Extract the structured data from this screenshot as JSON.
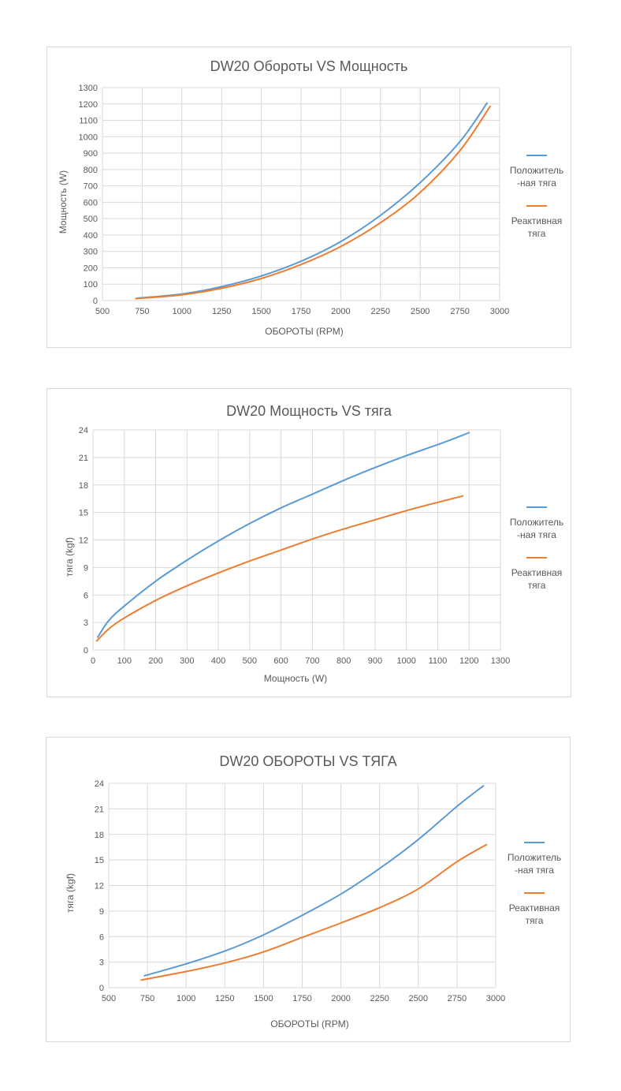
{
  "colors": {
    "series_positive": "#5b9bd5",
    "series_reactive": "#ed7d31",
    "grid": "#d9d9d9",
    "text": "#595959"
  },
  "legend": {
    "positive": "Положитель\n-ная тяга",
    "reactive": "Реактивная\nтяга"
  },
  "chart_data": [
    {
      "type": "line",
      "title": "DW20 Обороты VS Мощность",
      "xlabel": "ОБОРОТЫ (RPM)",
      "ylabel": "Мощность (W)",
      "xlim": [
        500,
        3000
      ],
      "ylim": [
        0,
        1300
      ],
      "xticks": [
        500,
        750,
        1000,
        1250,
        1500,
        1750,
        2000,
        2250,
        2500,
        2750,
        3000
      ],
      "yticks": [
        0,
        100,
        200,
        300,
        400,
        500,
        600,
        700,
        800,
        900,
        1000,
        1100,
        1200,
        1300
      ],
      "grid": true,
      "legend_position": "right",
      "series": [
        {
          "name": "Положитель-ная тяга",
          "x": [
            720,
            1000,
            1250,
            1500,
            1750,
            2000,
            2250,
            2500,
            2750,
            2920
          ],
          "y": [
            15,
            40,
            85,
            150,
            240,
            360,
            520,
            720,
            970,
            1205
          ]
        },
        {
          "name": "Реактивная тяга",
          "x": [
            710,
            1000,
            1250,
            1500,
            1750,
            2000,
            2250,
            2500,
            2750,
            2940
          ],
          "y": [
            12,
            35,
            75,
            135,
            220,
            330,
            475,
            660,
            915,
            1185
          ]
        }
      ]
    },
    {
      "type": "line",
      "title": "DW20 Мощность VS тяга",
      "xlabel": "Мощность (W)",
      "ylabel": "тяга (kgf)",
      "xlim": [
        0,
        1300
      ],
      "ylim": [
        0,
        24
      ],
      "xticks": [
        0,
        100,
        200,
        300,
        400,
        500,
        600,
        700,
        800,
        900,
        1000,
        1100,
        1200,
        1300
      ],
      "yticks": [
        0,
        3,
        6,
        9,
        12,
        15,
        18,
        21,
        24
      ],
      "grid": true,
      "legend_position": "right",
      "series": [
        {
          "name": "Положитель-ная тяга",
          "x": [
            15,
            50,
            100,
            200,
            300,
            400,
            500,
            600,
            700,
            800,
            900,
            1000,
            1100,
            1200
          ],
          "y": [
            1.4,
            3.2,
            4.8,
            7.5,
            9.8,
            11.9,
            13.8,
            15.5,
            17.0,
            18.5,
            19.9,
            21.2,
            22.4,
            23.7
          ]
        },
        {
          "name": "Реактивная тяга",
          "x": [
            12,
            50,
            100,
            200,
            300,
            400,
            500,
            600,
            700,
            800,
            900,
            1000,
            1100,
            1180
          ],
          "y": [
            1.0,
            2.3,
            3.5,
            5.4,
            7.0,
            8.4,
            9.7,
            10.9,
            12.1,
            13.2,
            14.2,
            15.2,
            16.1,
            16.8
          ]
        }
      ]
    },
    {
      "type": "line",
      "title": "DW20 ОБОРОТЫ VS ТЯГА",
      "xlabel": "ОБОРОТЫ (RPM)",
      "ylabel": "тяга (kgf)",
      "xlim": [
        500,
        3000
      ],
      "ylim": [
        0,
        24
      ],
      "xticks": [
        500,
        750,
        1000,
        1250,
        1500,
        1750,
        2000,
        2250,
        2500,
        2750,
        3000
      ],
      "yticks": [
        0,
        3,
        6,
        9,
        12,
        15,
        18,
        21,
        24
      ],
      "grid": true,
      "legend_position": "right",
      "series": [
        {
          "name": "Положитель-ная тяга",
          "x": [
            730,
            1000,
            1250,
            1500,
            1750,
            2000,
            2250,
            2500,
            2750,
            2920
          ],
          "y": [
            1.4,
            2.8,
            4.3,
            6.2,
            8.5,
            11.0,
            14.0,
            17.4,
            21.3,
            23.7
          ]
        },
        {
          "name": "Реактивная тяга",
          "x": [
            710,
            1000,
            1250,
            1500,
            1750,
            2000,
            2250,
            2500,
            2750,
            2940
          ],
          "y": [
            0.9,
            1.9,
            2.9,
            4.2,
            5.9,
            7.6,
            9.4,
            11.6,
            14.8,
            16.8
          ]
        }
      ]
    }
  ]
}
